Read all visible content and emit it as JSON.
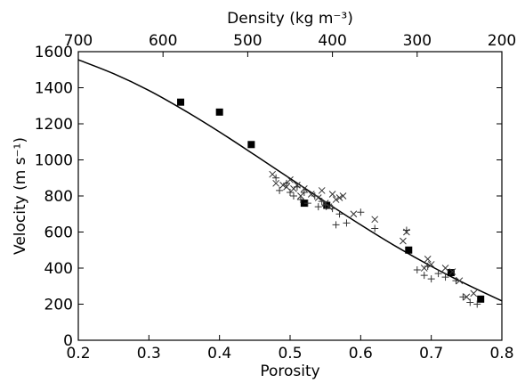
{
  "chart_data": {
    "type": "scatter",
    "title": "",
    "xlabel": "Porosity",
    "ylabel": "Velocity (m s⁻¹)",
    "x2label": "Density (kg m⁻³)",
    "xlim": [
      0.2,
      0.8
    ],
    "ylim": [
      0,
      1600
    ],
    "x2lim": [
      700,
      200
    ],
    "xticks": [
      "0.2",
      "0.3",
      "0.4",
      "0.5",
      "0.6",
      "0.7",
      "0.8"
    ],
    "yticks": [
      "0",
      "200",
      "400",
      "600",
      "800",
      "1000",
      "1200",
      "1400",
      "1600"
    ],
    "x2ticks": [
      "700",
      "600",
      "500",
      "400",
      "300",
      "200"
    ],
    "grid": false,
    "series": [
      {
        "marker": "line",
        "color": "#000000",
        "x": [
          0.2,
          0.25,
          0.3,
          0.35,
          0.4,
          0.45,
          0.5,
          0.55,
          0.6,
          0.65,
          0.7,
          0.75,
          0.8
        ],
        "y": [
          1555,
          1478,
          1385,
          1275,
          1155,
          1027,
          897,
          767,
          640,
          520,
          410,
          310,
          218
        ]
      },
      {
        "marker": "square",
        "color": "#000000",
        "x": [
          0.345,
          0.4,
          0.445,
          0.52,
          0.552,
          0.668,
          0.728,
          0.77
        ],
        "y": [
          1320,
          1265,
          1085,
          760,
          748,
          500,
          375,
          228
        ]
      },
      {
        "marker": "x",
        "color": "#000000",
        "x": [
          0.475,
          0.48,
          0.49,
          0.495,
          0.5,
          0.505,
          0.51,
          0.515,
          0.52,
          0.53,
          0.54,
          0.545,
          0.55,
          0.555,
          0.56,
          0.565,
          0.57,
          0.575,
          0.59,
          0.62,
          0.66,
          0.665,
          0.69,
          0.695,
          0.7,
          0.72,
          0.73,
          0.74,
          0.75,
          0.76
        ],
        "y": [
          920,
          870,
          860,
          850,
          890,
          840,
          860,
          800,
          840,
          810,
          790,
          830,
          760,
          740,
          810,
          780,
          790,
          800,
          700,
          670,
          550,
          600,
          400,
          450,
          420,
          400,
          380,
          330,
          240,
          260
        ]
      },
      {
        "marker": "plus",
        "color": "#000000",
        "x": [
          0.48,
          0.485,
          0.495,
          0.5,
          0.505,
          0.51,
          0.515,
          0.52,
          0.525,
          0.535,
          0.54,
          0.545,
          0.55,
          0.56,
          0.565,
          0.57,
          0.58,
          0.6,
          0.62,
          0.665,
          0.68,
          0.69,
          0.695,
          0.7,
          0.71,
          0.72,
          0.735,
          0.745,
          0.755,
          0.765
        ],
        "y": [
          900,
          830,
          870,
          820,
          800,
          850,
          780,
          820,
          760,
          800,
          740,
          770,
          750,
          730,
          640,
          700,
          650,
          710,
          620,
          610,
          390,
          360,
          410,
          340,
          370,
          350,
          330,
          240,
          210,
          200
        ]
      }
    ]
  }
}
